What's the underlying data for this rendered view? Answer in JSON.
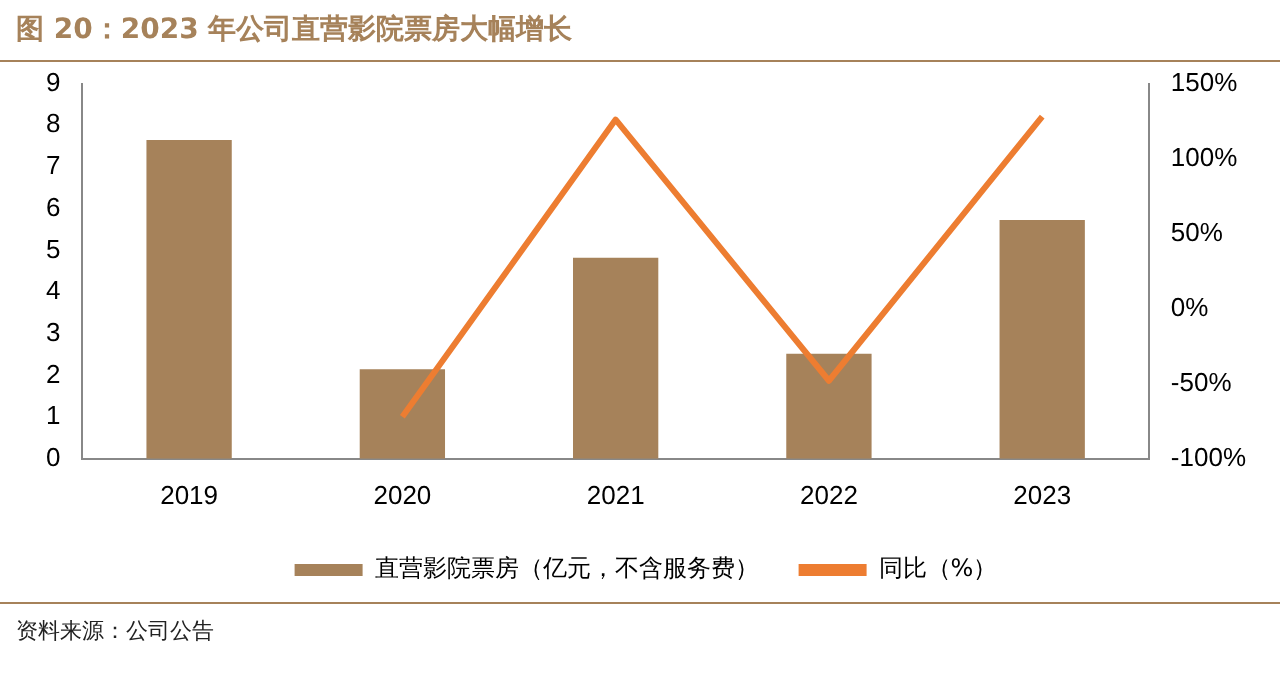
{
  "chart_data": {
    "type": "bar",
    "title": "图 20：2023 年公司直营影院票房大幅增长",
    "categories": [
      "2019",
      "2020",
      "2021",
      "2022",
      "2023"
    ],
    "series": [
      {
        "name": "直营影院票房（亿元，不含服务费）",
        "color": "#a6825a",
        "values": [
          7.65,
          2.15,
          4.82,
          2.52,
          5.73
        ]
      },
      {
        "name": "同比（%）",
        "type": "line",
        "axis": "y2",
        "color": "#ed7d31",
        "values": [
          null,
          -72,
          126,
          -48,
          128
        ]
      }
    ],
    "ylim": [
      0,
      9
    ],
    "yticks": [
      0,
      1,
      2,
      3,
      4,
      5,
      6,
      7,
      8,
      9
    ],
    "y2lim": [
      -100,
      150
    ],
    "y2ticks": [
      {
        "value": -100,
        "label": "-100%"
      },
      {
        "value": -50,
        "label": "-50%"
      },
      {
        "value": 0,
        "label": "0%"
      },
      {
        "value": 50,
        "label": "50%"
      },
      {
        "value": 100,
        "label": "100%"
      },
      {
        "value": 150,
        "label": "150%"
      }
    ],
    "grid": false,
    "legend": "bottom",
    "marker": "none",
    "line_style": "solid",
    "annotations": [
      "资料来源：公司公告"
    ]
  }
}
